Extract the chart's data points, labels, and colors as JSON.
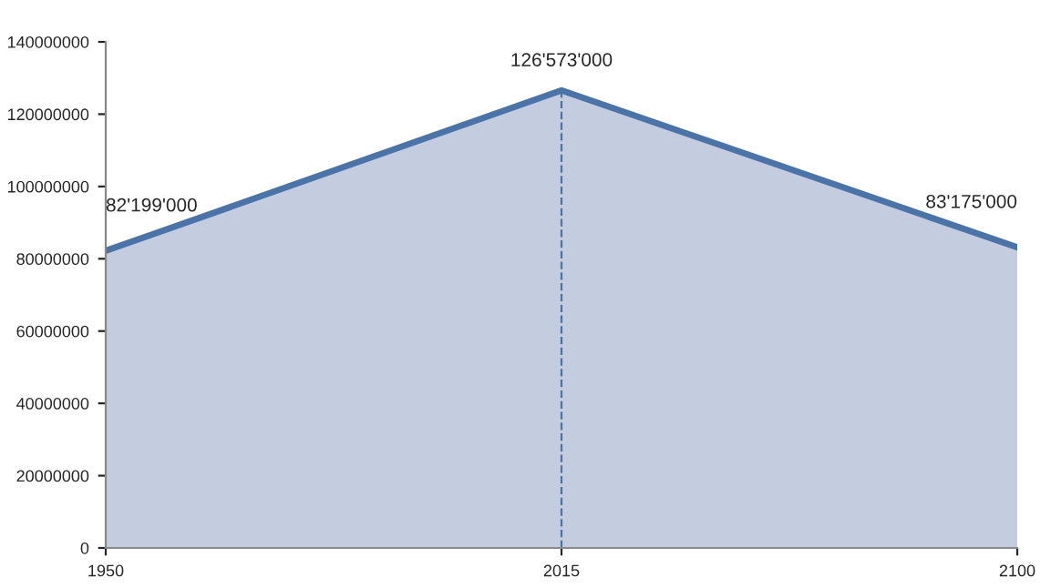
{
  "chart_data": {
    "type": "area",
    "categories": [
      "1950",
      "2015",
      "2100"
    ],
    "series": [
      {
        "color": "#4a74a8",
        "values": [
          82199000,
          126573000,
          83175000
        ],
        "value_labels": [
          "82'199'000",
          "126'573'000",
          "83'175'000"
        ]
      }
    ],
    "ylim": [
      0,
      140000000
    ],
    "yticks": [
      0,
      20000000,
      40000000,
      60000000,
      80000000,
      100000000,
      120000000,
      140000000
    ],
    "ref_lines": [
      {
        "axis": "x",
        "value": "2015",
        "color": "#4a74a8",
        "line_style": "dashed"
      }
    ],
    "grid": false,
    "legend": false
  }
}
